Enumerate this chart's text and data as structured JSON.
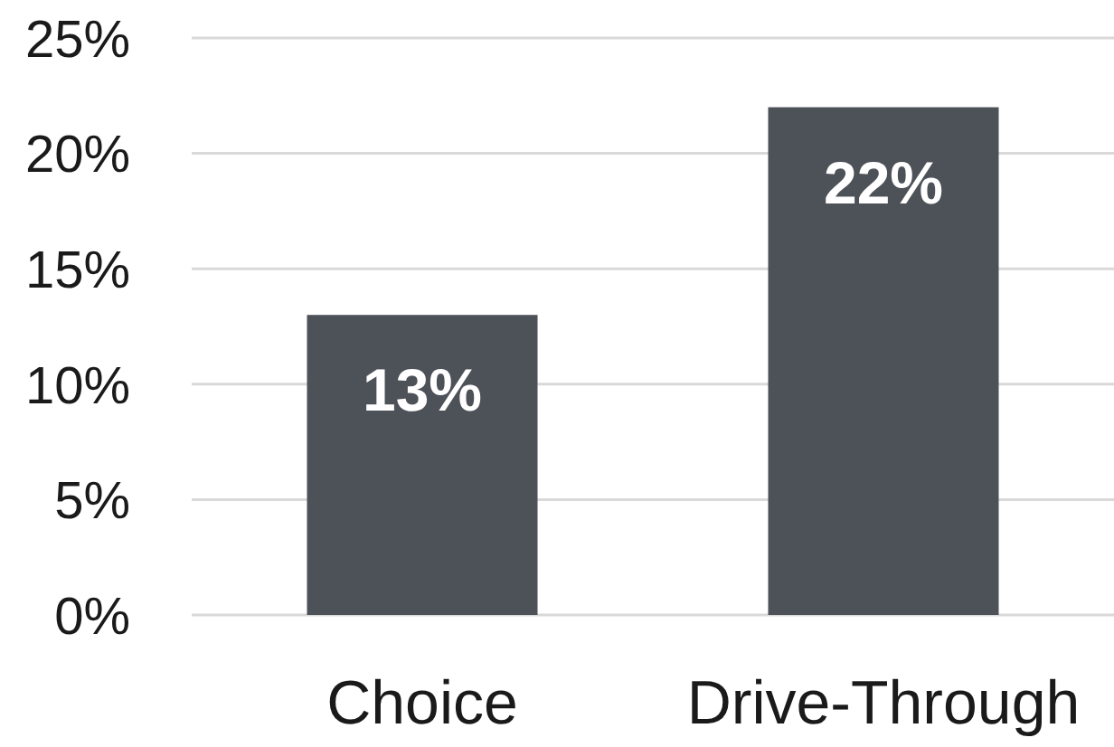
{
  "chart_data": {
    "type": "bar",
    "categories": [
      "Choice",
      "Drive-Through"
    ],
    "values": [
      13,
      22
    ],
    "color": "#4d5158",
    "value_labels": [
      "13%",
      "22%"
    ],
    "ylim": [
      0,
      25
    ],
    "yticks": [
      {
        "value": 0,
        "label": "0%"
      },
      {
        "value": 5,
        "label": "5%"
      },
      {
        "value": 10,
        "label": "10%"
      },
      {
        "value": 15,
        "label": "15%"
      },
      {
        "value": 20,
        "label": "20%"
      },
      {
        "value": 25,
        "label": "25%"
      }
    ],
    "grid": "y"
  }
}
